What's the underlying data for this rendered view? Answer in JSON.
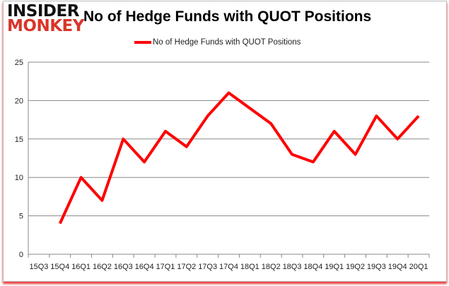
{
  "logo": {
    "line1": "INSIDER",
    "line2": "MONKEY"
  },
  "chart_data": {
    "type": "line",
    "title": "No of Hedge Funds with QUOT Positions",
    "xlabel": "",
    "ylabel": "",
    "categories": [
      "15Q3",
      "15Q4",
      "16Q1",
      "16Q2",
      "16Q3",
      "16Q4",
      "17Q1",
      "17Q2",
      "17Q3",
      "17Q4",
      "18Q1",
      "18Q2",
      "18Q3",
      "18Q4",
      "19Q1",
      "19Q2",
      "19Q3",
      "19Q4",
      "20Q1"
    ],
    "series": [
      {
        "name": "No of Hedge Funds with QUOT Positions",
        "color": "#ff0000",
        "values": [
          null,
          4,
          10,
          7,
          15,
          12,
          16,
          14,
          18,
          21,
          19,
          17,
          13,
          12,
          16,
          13,
          18,
          15,
          18
        ]
      }
    ],
    "ylim": [
      0,
      25
    ],
    "yticks": [
      0,
      5,
      10,
      15,
      20,
      25
    ],
    "grid": true,
    "legend": "top"
  }
}
